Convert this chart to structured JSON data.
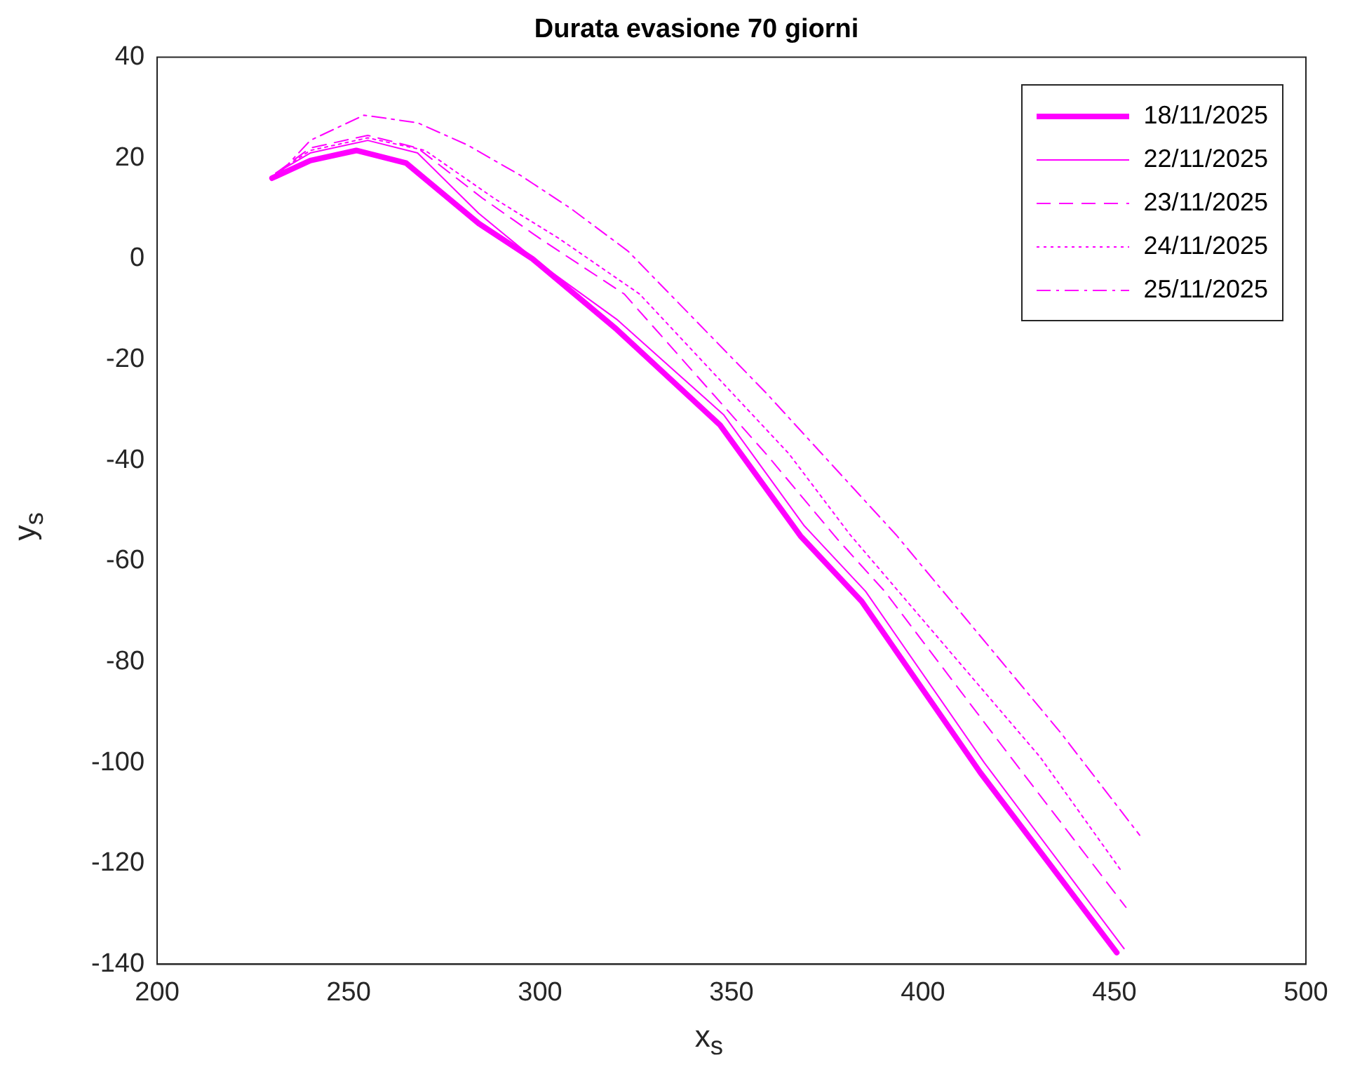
{
  "chart_data": {
    "type": "line",
    "title": "Durata evasione 70 giorni",
    "xlabel": "x$_{s}$",
    "ylabel": "y$_{s}$",
    "xlim": [
      200,
      500
    ],
    "ylim": [
      -140,
      40
    ],
    "xticks": [
      200,
      250,
      300,
      350,
      400,
      450,
      500
    ],
    "yticks": [
      -140,
      -120,
      -100,
      -80,
      -60,
      -40,
      -20,
      0,
      20,
      40
    ],
    "grid": false,
    "legend": "top right",
    "marker": "none",
    "series": [
      {
        "name": "18/11/2025",
        "color": "#ff00ff",
        "line_style": "solid",
        "x": [
          230,
          240,
          252,
          265,
          284,
          298,
          320,
          347,
          368,
          384,
          415,
          450.6
        ],
        "values": [
          16,
          19.5,
          21.5,
          19,
          7,
          0,
          -14,
          -33,
          -55,
          -68,
          -102,
          -137.7
        ]
      },
      {
        "name": "22/11/2025",
        "color": "#ff00ff",
        "line_style": "solid",
        "x": [
          231,
          240,
          255,
          268,
          284,
          300,
          320,
          348,
          369,
          385,
          416,
          452.5
        ],
        "values": [
          17,
          21,
          23.5,
          21,
          9,
          -1,
          -12,
          -31,
          -53,
          -66,
          -100,
          -136.9
        ]
      },
      {
        "name": "23/11/2025",
        "color": "#ff00ff",
        "line_style": "dashed",
        "x": [
          231,
          240,
          255,
          268,
          285,
          300,
          322,
          359,
          377.6,
          390,
          423,
          453
        ],
        "values": [
          17,
          22,
          24.5,
          22,
          12,
          4,
          -7,
          -38.7,
          -55.6,
          -66,
          -99,
          -128.7
        ]
      },
      {
        "name": "24/11/2025",
        "color": "#ff00ff",
        "line_style": "dotted",
        "x": [
          231,
          240,
          255,
          270,
          288,
          305,
          326,
          365,
          381,
          430.6,
          452
        ],
        "values": [
          17,
          21.5,
          24,
          21.5,
          12,
          4,
          -7,
          -38.7,
          -54.8,
          -98.9,
          -121.7
        ]
      },
      {
        "name": "25/11/2025",
        "color": "#ff00ff",
        "line_style": "dashdot",
        "x": [
          232,
          240,
          254,
          268,
          281,
          295,
          308,
          323,
          359,
          393,
          436,
          456.6
        ],
        "values": [
          17,
          23.5,
          28.5,
          27,
          22.6,
          16.5,
          10,
          1.5,
          -26.6,
          -54.8,
          -94.1,
          -114.4
        ]
      }
    ]
  }
}
